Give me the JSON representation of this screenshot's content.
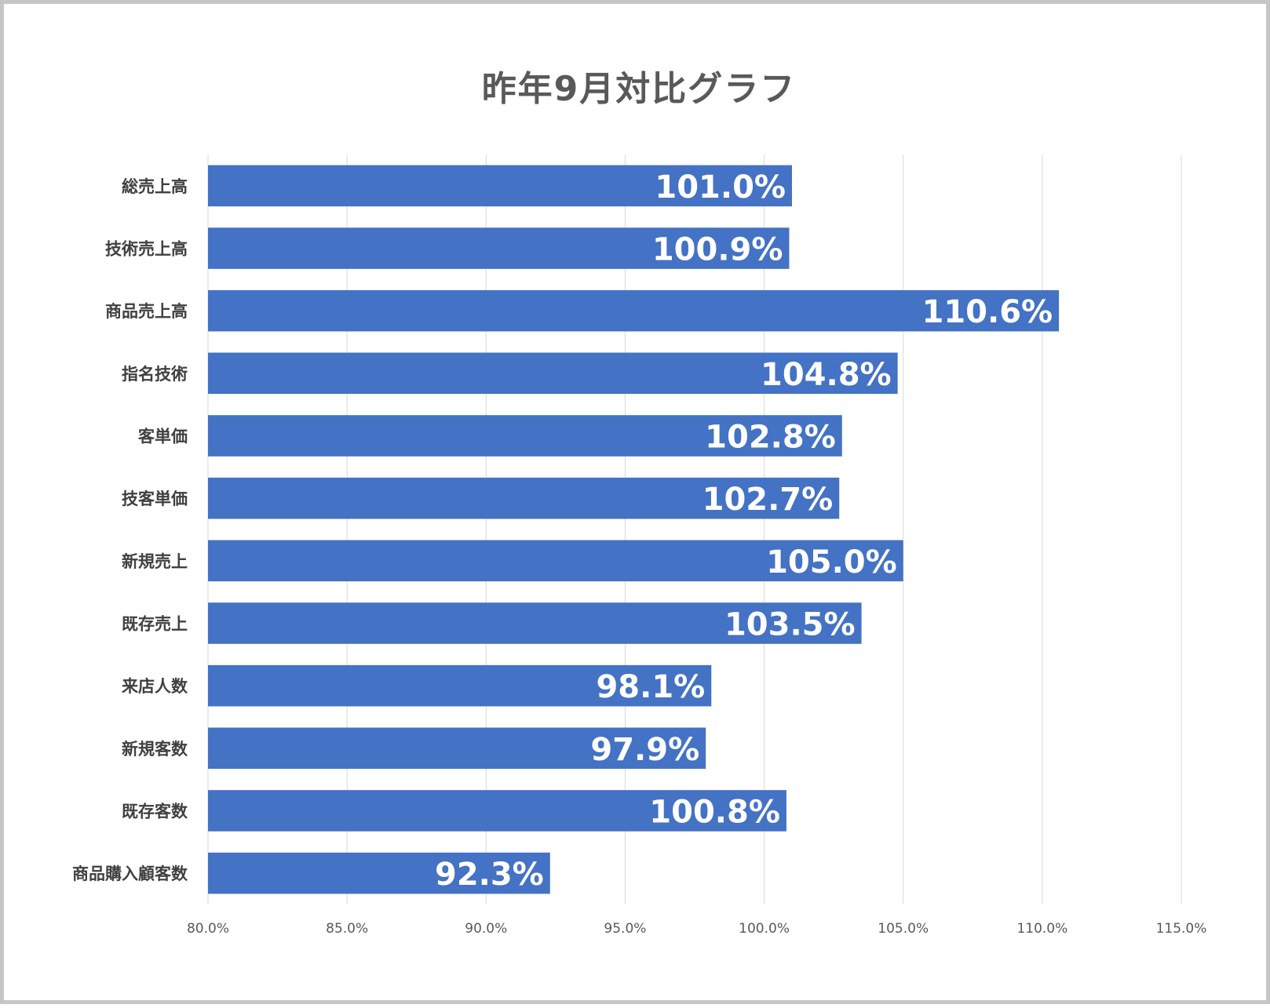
{
  "chart_data": {
    "type": "bar",
    "orientation": "horizontal",
    "title": "昨年9月対比グラフ",
    "categories": [
      "総売上高",
      "技術売上高",
      "商品売上高",
      "指名技術",
      "客単価",
      "技客単価",
      "新規売上",
      "既存売上",
      "来店人数",
      "新規客数",
      "既存客数",
      "商品購入顧客数"
    ],
    "values": [
      101.0,
      100.9,
      110.6,
      104.8,
      102.8,
      102.7,
      105.0,
      103.5,
      98.1,
      97.9,
      100.8,
      92.3
    ],
    "data_labels": [
      "101.0%",
      "100.9%",
      "110.6%",
      "104.8%",
      "102.8%",
      "102.7%",
      "105.0%",
      "103.5%",
      "98.1%",
      "97.9%",
      "100.8%",
      "92.3%"
    ],
    "x_ticks": [
      "80.0%",
      "85.0%",
      "90.0%",
      "95.0%",
      "100.0%",
      "105.0%",
      "110.0%",
      "115.0%"
    ],
    "xlim": [
      80,
      115
    ],
    "grid": true,
    "bar_color": "#4472c4",
    "legend": "none"
  }
}
